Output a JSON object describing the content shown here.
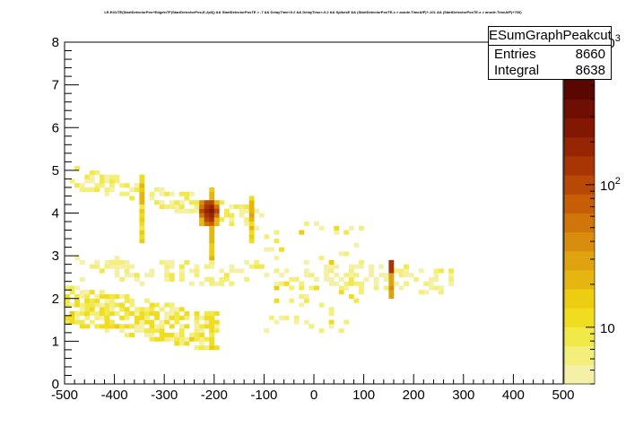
{
  "title": "ESumGraphPeakcut",
  "canvas_title": "LE-E41/TE(StartDetectorPos+EdgeInTF(StartDetectorPos;E-2p0)) && StartDetectorPosTE > -7 && DelayTime<0.2 && DelayTime>-0.2 && SpikesE && (StartDetectorPosTE-x > anode.TimeAfF)+-101 && (StartDetectorPosTE-x > anode.TimeAfF)+700)",
  "stats": {
    "title": "ESumGraphPeakcut",
    "entries_label": "Entries",
    "entries_value": "8660",
    "integral_label": "Integral",
    "integral_value": "8638"
  },
  "colors": {
    "palette_low_to_high": [
      "#f5f0a8",
      "#f3ef7a",
      "#f1e84a",
      "#f0dc20",
      "#eccd12",
      "#e6b610",
      "#dea30e",
      "#d88d0c",
      "#cf7509",
      "#c55e07",
      "#b84805",
      "#a83604",
      "#962603",
      "#831802",
      "#6f0e02",
      "#5a0701",
      "#460401",
      "#330200"
    ]
  },
  "chart_data": {
    "type": "heatmap",
    "title": "",
    "xlabel": "",
    "ylabel": "",
    "xlim": [
      -500,
      500
    ],
    "ylim": [
      0,
      8
    ],
    "x_ticks": [
      -500,
      -400,
      -300,
      -200,
      -100,
      0,
      100,
      200,
      300,
      400,
      500
    ],
    "y_ticks": [
      0,
      1,
      2,
      3,
      4,
      5,
      6,
      7,
      8
    ],
    "z_scale": "log",
    "z_ticks": [
      {
        "value": 10,
        "label": "10"
      },
      {
        "value": 100,
        "label": "10^2"
      },
      {
        "value": 1000,
        "label": "10^3"
      }
    ],
    "bin_width_x": 10,
    "bin_width_y": 0.1,
    "regions": [
      {
        "name": "upper band",
        "x_range": [
          -490,
          -110
        ],
        "y_center_at_x_-490": 4.85,
        "y_center_at_x_-110": 3.85
      },
      {
        "name": "peak cluster",
        "x": -210,
        "y": 4.05,
        "counts": 250
      },
      {
        "name": "middle band",
        "x_range": [
          -490,
          270
        ],
        "y_center_at_x_-490": 2.7,
        "y_center_at_x_270": 2.45
      },
      {
        "name": "vertical streak",
        "x": 155,
        "y_range": [
          2.0,
          2.9
        ],
        "counts_peak": 120
      },
      {
        "name": "lower band",
        "x_range": [
          -500,
          -200
        ],
        "y_center_at_x_-500": 1.9,
        "y_center_at_x_-200": 1.25
      }
    ],
    "legend": "top-right stats box"
  }
}
